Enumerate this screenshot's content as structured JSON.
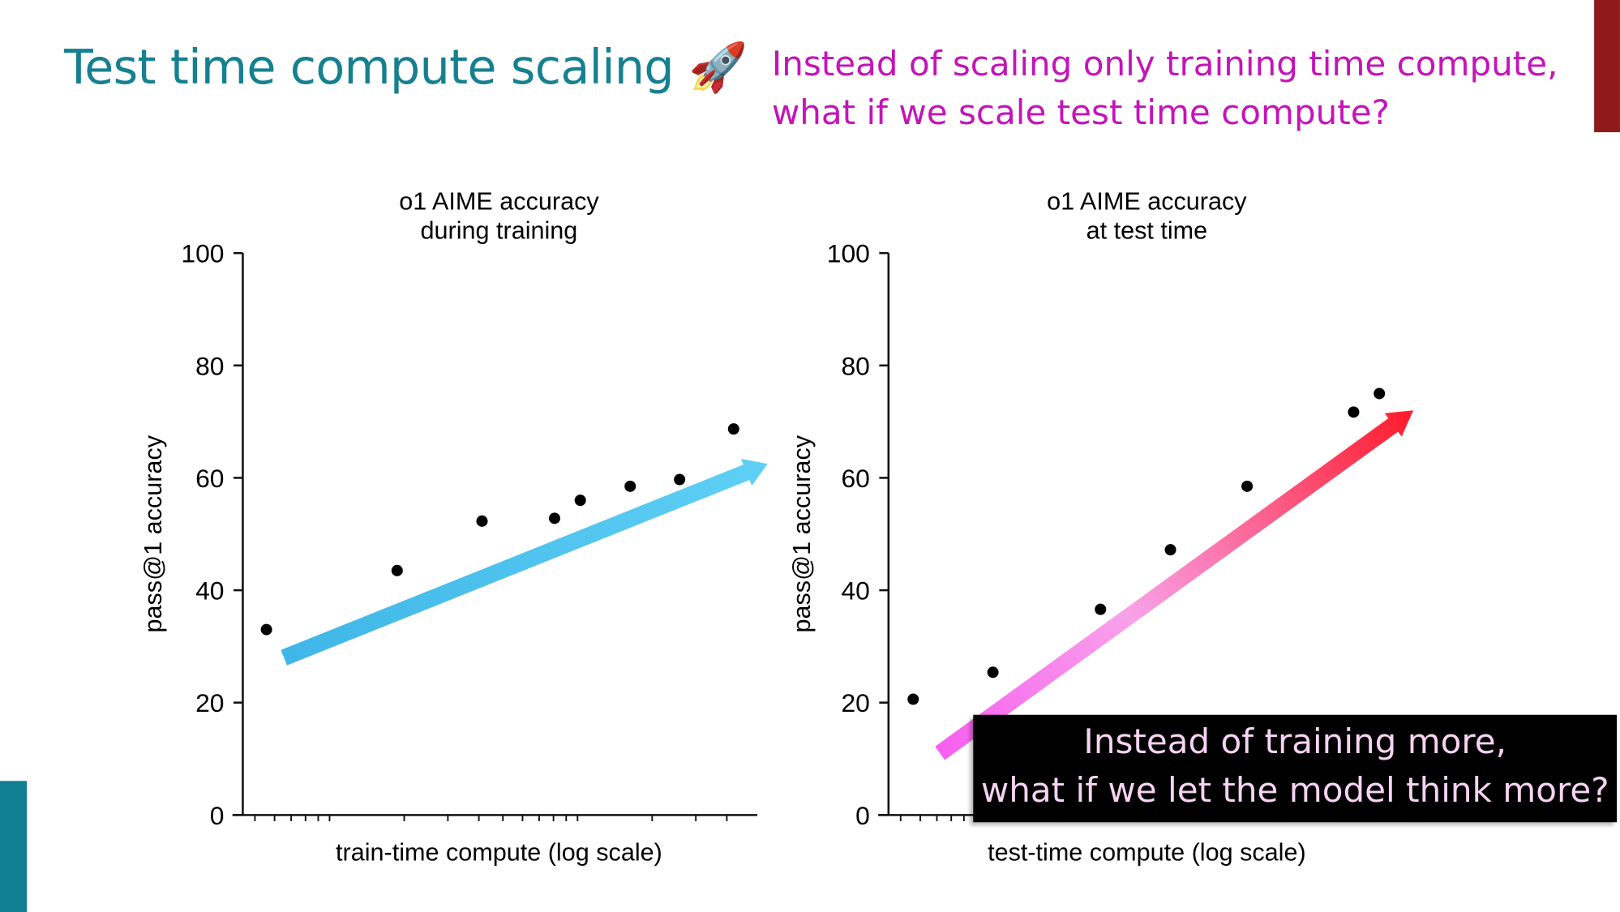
{
  "slide": {
    "title": "Test time compute scaling",
    "title_emoji": "🚀",
    "subtitle_line1": "Instead of scaling only training time compute,",
    "subtitle_line2": "what if we scale test time compute?",
    "callout_line1": "Instead of training more,",
    "callout_line2": "what if we let the model think more?",
    "colors": {
      "title": "#15808f",
      "subtitle": "#c414b8",
      "accent_bar_top": "#8e1a1a",
      "accent_bar_bottom": "#0f7f91"
    }
  },
  "chart_data": [
    {
      "type": "scatter",
      "title_line1": "o1 AIME accuracy",
      "title_line2": "during training",
      "xlabel": "train-time compute (log scale)",
      "ylabel": "pass@1 accuracy",
      "x_scale": "log",
      "x_note_relative_position": true,
      "ylim": [
        0,
        100
      ],
      "yticks": [
        "0",
        "20",
        "40",
        "60",
        "80",
        "100"
      ],
      "x": [
        0.046,
        0.3,
        0.465,
        0.606,
        0.656,
        0.753,
        0.849,
        0.954
      ],
      "y": [
        33,
        43.5,
        52.3,
        52.8,
        56,
        58.5,
        59.7,
        68.7
      ],
      "trend_arrow": {
        "from": [
          0.08,
          28
        ],
        "to": [
          1.02,
          62.5
        ],
        "colors": [
          "#3fb6e8",
          "#5fd0f5"
        ]
      }
    },
    {
      "type": "scatter",
      "title_line1": "o1 AIME accuracy",
      "title_line2": "at test time",
      "xlabel": "test-time compute (log scale)",
      "ylabel": "pass@1 accuracy",
      "x_scale": "log",
      "ylim": [
        0,
        100
      ],
      "yticks": [
        "0",
        "20",
        "40",
        "60",
        "80",
        "100"
      ],
      "x": [
        0.048,
        0.203,
        0.412,
        0.548,
        0.697,
        0.904,
        0.954
      ],
      "y": [
        20.6,
        25.4,
        36.6,
        47.2,
        58.5,
        71.7,
        75
      ],
      "trend_arrow": {
        "from": [
          0.1,
          11
        ],
        "to": [
          1.02,
          72
        ],
        "colors": [
          "#f75ef0",
          "#f9a2ea",
          "#ff1a2a"
        ]
      }
    }
  ]
}
